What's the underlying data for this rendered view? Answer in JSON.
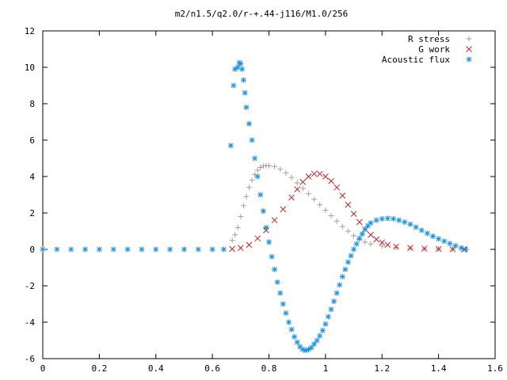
{
  "chart_data": {
    "type": "scatter",
    "title": "m2/n1.5/q2.0/r-+.44-j116/M1.0/256",
    "xlabel": "",
    "ylabel": "",
    "xlim": [
      0,
      1.6
    ],
    "ylim": [
      -6,
      12
    ],
    "x_ticks": [
      0,
      0.2,
      0.4,
      0.6,
      0.8,
      1.0,
      1.2,
      1.4,
      1.6
    ],
    "y_ticks": [
      -6,
      -4,
      -2,
      0,
      2,
      4,
      6,
      8,
      10,
      12
    ],
    "x_tick_labels": [
      "0",
      "0.2",
      "0.4",
      "0.6",
      "0.8",
      "1",
      "1.2",
      "1.4",
      "1.6"
    ],
    "y_tick_labels": [
      "-6",
      "-4",
      "-2",
      "0",
      "2",
      "4",
      "6",
      "8",
      "10",
      "12"
    ],
    "grid": false,
    "legend_position": "top-right",
    "series": [
      {
        "name": "R stress",
        "marker": "plus",
        "color": "#a0a0a0",
        "points": [
          [
            0.67,
            0.5
          ],
          [
            0.68,
            0.8
          ],
          [
            0.69,
            1.2
          ],
          [
            0.7,
            1.8
          ],
          [
            0.71,
            2.4
          ],
          [
            0.72,
            2.9
          ],
          [
            0.73,
            3.4
          ],
          [
            0.74,
            3.8
          ],
          [
            0.75,
            4.1
          ],
          [
            0.76,
            4.35
          ],
          [
            0.77,
            4.5
          ],
          [
            0.78,
            4.58
          ],
          [
            0.79,
            4.6
          ],
          [
            0.8,
            4.6
          ],
          [
            0.82,
            4.55
          ],
          [
            0.84,
            4.4
          ],
          [
            0.86,
            4.2
          ],
          [
            0.88,
            3.95
          ],
          [
            0.9,
            3.65
          ],
          [
            0.92,
            3.35
          ],
          [
            0.94,
            3.05
          ],
          [
            0.96,
            2.75
          ],
          [
            0.98,
            2.45
          ],
          [
            1.0,
            2.15
          ],
          [
            1.02,
            1.85
          ],
          [
            1.04,
            1.55
          ],
          [
            1.06,
            1.25
          ],
          [
            1.08,
            1.0
          ],
          [
            1.1,
            0.75
          ],
          [
            1.12,
            0.55
          ],
          [
            1.14,
            0.4
          ],
          [
            1.16,
            0.3
          ],
          [
            1.2,
            0.18
          ],
          [
            1.25,
            0.1
          ],
          [
            1.3,
            0.05
          ],
          [
            1.35,
            0.03
          ],
          [
            1.4,
            0.02
          ],
          [
            1.45,
            0.01
          ],
          [
            1.5,
            0.0
          ]
        ]
      },
      {
        "name": "G work",
        "marker": "cross",
        "color": "#cc2020",
        "points": [
          [
            0.67,
            0.02
          ],
          [
            0.7,
            0.08
          ],
          [
            0.73,
            0.25
          ],
          [
            0.76,
            0.6
          ],
          [
            0.79,
            1.05
          ],
          [
            0.82,
            1.6
          ],
          [
            0.85,
            2.2
          ],
          [
            0.88,
            2.85
          ],
          [
            0.9,
            3.3
          ],
          [
            0.92,
            3.7
          ],
          [
            0.94,
            4.0
          ],
          [
            0.96,
            4.15
          ],
          [
            0.98,
            4.15
          ],
          [
            1.0,
            4.0
          ],
          [
            1.02,
            3.75
          ],
          [
            1.04,
            3.4
          ],
          [
            1.06,
            2.95
          ],
          [
            1.08,
            2.45
          ],
          [
            1.1,
            1.95
          ],
          [
            1.12,
            1.5
          ],
          [
            1.14,
            1.1
          ],
          [
            1.16,
            0.8
          ],
          [
            1.18,
            0.55
          ],
          [
            1.2,
            0.38
          ],
          [
            1.22,
            0.25
          ],
          [
            1.25,
            0.15
          ],
          [
            1.3,
            0.08
          ],
          [
            1.35,
            0.04
          ],
          [
            1.4,
            0.02
          ],
          [
            1.45,
            0.01
          ],
          [
            1.49,
            0.0
          ]
        ]
      },
      {
        "name": "Acoustic flux",
        "marker": "star",
        "color": "#1a8fe3",
        "points": [
          [
            0.0,
            0.0
          ],
          [
            0.05,
            0.0
          ],
          [
            0.1,
            0.0
          ],
          [
            0.15,
            0.0
          ],
          [
            0.2,
            0.0
          ],
          [
            0.25,
            0.0
          ],
          [
            0.3,
            0.0
          ],
          [
            0.35,
            0.0
          ],
          [
            0.4,
            0.0
          ],
          [
            0.45,
            0.0
          ],
          [
            0.5,
            0.0
          ],
          [
            0.55,
            0.0
          ],
          [
            0.6,
            0.0
          ],
          [
            0.64,
            0.0
          ],
          [
            0.665,
            5.7
          ],
          [
            0.675,
            9.0
          ],
          [
            0.68,
            9.9
          ],
          [
            0.69,
            10.0
          ],
          [
            0.695,
            10.25
          ],
          [
            0.7,
            10.2
          ],
          [
            0.705,
            9.9
          ],
          [
            0.71,
            9.3
          ],
          [
            0.715,
            8.6
          ],
          [
            0.72,
            7.8
          ],
          [
            0.73,
            6.9
          ],
          [
            0.74,
            6.0
          ],
          [
            0.75,
            5.0
          ],
          [
            0.76,
            4.0
          ],
          [
            0.77,
            3.0
          ],
          [
            0.78,
            2.1
          ],
          [
            0.79,
            1.2
          ],
          [
            0.8,
            0.4
          ],
          [
            0.81,
            -0.4
          ],
          [
            0.82,
            -1.1
          ],
          [
            0.83,
            -1.8
          ],
          [
            0.84,
            -2.4
          ],
          [
            0.85,
            -3.0
          ],
          [
            0.86,
            -3.5
          ],
          [
            0.87,
            -4.0
          ],
          [
            0.88,
            -4.4
          ],
          [
            0.89,
            -4.8
          ],
          [
            0.9,
            -5.1
          ],
          [
            0.91,
            -5.35
          ],
          [
            0.92,
            -5.5
          ],
          [
            0.93,
            -5.55
          ],
          [
            0.94,
            -5.5
          ],
          [
            0.95,
            -5.4
          ],
          [
            0.96,
            -5.2
          ],
          [
            0.97,
            -5.0
          ],
          [
            0.98,
            -4.75
          ],
          [
            0.99,
            -4.45
          ],
          [
            1.0,
            -4.1
          ],
          [
            1.01,
            -3.7
          ],
          [
            1.02,
            -3.3
          ],
          [
            1.03,
            -2.85
          ],
          [
            1.04,
            -2.4
          ],
          [
            1.05,
            -1.95
          ],
          [
            1.06,
            -1.5
          ],
          [
            1.07,
            -1.1
          ],
          [
            1.08,
            -0.7
          ],
          [
            1.09,
            -0.35
          ],
          [
            1.1,
            0.0
          ],
          [
            1.11,
            0.3
          ],
          [
            1.12,
            0.6
          ],
          [
            1.13,
            0.85
          ],
          [
            1.14,
            1.1
          ],
          [
            1.15,
            1.3
          ],
          [
            1.16,
            1.45
          ],
          [
            1.18,
            1.6
          ],
          [
            1.2,
            1.68
          ],
          [
            1.22,
            1.7
          ],
          [
            1.24,
            1.68
          ],
          [
            1.26,
            1.6
          ],
          [
            1.28,
            1.5
          ],
          [
            1.3,
            1.38
          ],
          [
            1.32,
            1.22
          ],
          [
            1.34,
            1.05
          ],
          [
            1.36,
            0.88
          ],
          [
            1.38,
            0.72
          ],
          [
            1.4,
            0.58
          ],
          [
            1.42,
            0.45
          ],
          [
            1.44,
            0.32
          ],
          [
            1.46,
            0.2
          ],
          [
            1.48,
            0.08
          ],
          [
            1.495,
            0.0
          ]
        ]
      }
    ]
  }
}
